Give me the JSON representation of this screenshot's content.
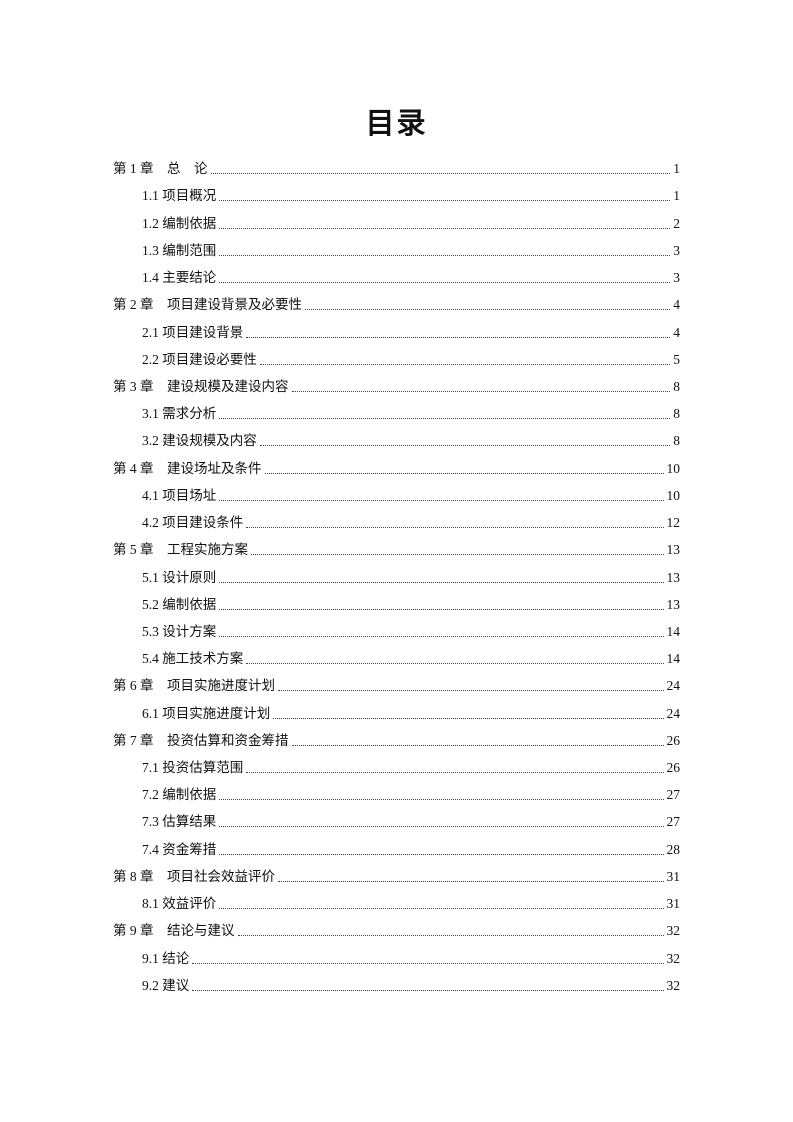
{
  "title": "目录",
  "entries": [
    {
      "level": 1,
      "label": "第 1 章　总　论",
      "page": "1"
    },
    {
      "level": 2,
      "label": "1.1 项目概况",
      "page": "1"
    },
    {
      "level": 2,
      "label": "1.2 编制依据",
      "page": "2"
    },
    {
      "level": 2,
      "label": "1.3 编制范围",
      "page": "3"
    },
    {
      "level": 2,
      "label": "1.4 主要结论",
      "page": "3"
    },
    {
      "level": 1,
      "label": "第 2 章　项目建设背景及必要性",
      "page": "4"
    },
    {
      "level": 2,
      "label": "2.1 项目建设背景",
      "page": "4"
    },
    {
      "level": 2,
      "label": "2.2 项目建设必要性",
      "page": "5"
    },
    {
      "level": 1,
      "label": "第 3 章　建设规模及建设内容",
      "page": "8"
    },
    {
      "level": 2,
      "label": "3.1 需求分析",
      "page": "8"
    },
    {
      "level": 2,
      "label": "3.2 建设规模及内容",
      "page": "8"
    },
    {
      "level": 1,
      "label": "第 4 章　建设场址及条件",
      "page": "10"
    },
    {
      "level": 2,
      "label": "4.1 项目场址",
      "page": "10"
    },
    {
      "level": 2,
      "label": "4.2 项目建设条件",
      "page": "12"
    },
    {
      "level": 1,
      "label": "第 5 章　工程实施方案",
      "page": "13"
    },
    {
      "level": 2,
      "label": "5.1 设计原则",
      "page": "13"
    },
    {
      "level": 2,
      "label": "5.2 编制依据",
      "page": "13"
    },
    {
      "level": 2,
      "label": "5.3 设计方案",
      "page": "14"
    },
    {
      "level": 2,
      "label": "5.4 施工技术方案",
      "page": "14"
    },
    {
      "level": 1,
      "label": "第 6 章　项目实施进度计划",
      "page": "24"
    },
    {
      "level": 2,
      "label": "6.1 项目实施进度计划",
      "page": "24"
    },
    {
      "level": 1,
      "label": "第 7 章　投资估算和资金筹措",
      "page": "26"
    },
    {
      "level": 2,
      "label": "7.1 投资估算范围",
      "page": "26"
    },
    {
      "level": 2,
      "label": "7.2 编制依据",
      "page": "27"
    },
    {
      "level": 2,
      "label": "7.3 估算结果",
      "page": "27"
    },
    {
      "level": 2,
      "label": "7.4 资金筹措",
      "page": "28"
    },
    {
      "level": 1,
      "label": "第 8 章　项目社会效益评价",
      "page": "31"
    },
    {
      "level": 2,
      "label": "8.1 效益评价",
      "page": "31"
    },
    {
      "level": 1,
      "label": "第 9 章　结论与建议",
      "page": "32"
    },
    {
      "level": 2,
      "label": "9.1 结论",
      "page": "32"
    },
    {
      "level": 2,
      "label": "9.2 建议",
      "page": "32"
    }
  ]
}
